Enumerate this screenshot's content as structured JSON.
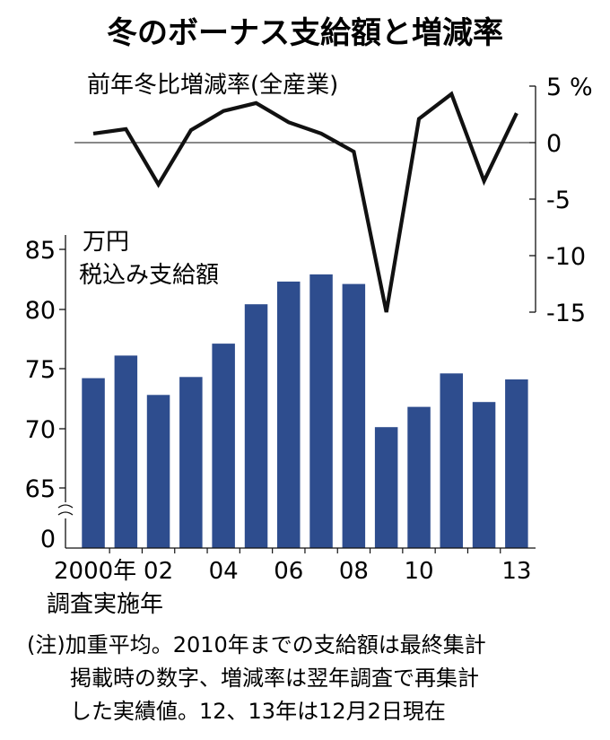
{
  "chart_data": {
    "title": "冬のボーナス支給額と増減率",
    "note_lines": [
      "(注)加重平均。2010年までの支給額は最終集計",
      "掲載時の数字、増減率は翌年調査で再集計",
      "した実績値。12、13年は12月2日現在"
    ],
    "bar": {
      "type": "bar",
      "label_lines": [
        "万円",
        "税込み支給額"
      ],
      "categories": [
        "2000",
        "2001",
        "2002",
        "2003",
        "2004",
        "2005",
        "2006",
        "2007",
        "2008",
        "2009",
        "2010",
        "2011",
        "2012",
        "2013"
      ],
      "values": [
        74.2,
        76.1,
        72.8,
        74.3,
        77.1,
        80.4,
        82.3,
        82.9,
        82.1,
        70.1,
        71.8,
        74.6,
        72.2,
        74.1
      ],
      "y_ticks": [
        "85",
        "80",
        "75",
        "70",
        "65",
        "0"
      ],
      "ylim": [
        62,
        85
      ],
      "axis_break": true,
      "color": "#2e4d8e"
    },
    "line": {
      "type": "line",
      "label": "前年冬比増減率(全産業)",
      "values": [
        0.8,
        1.2,
        -3.7,
        1.1,
        2.8,
        3.5,
        1.8,
        0.8,
        -0.8,
        -15.0,
        2.1,
        4.3,
        -3.4,
        2.6
      ],
      "y_ticks": [
        "5",
        "0",
        "-5",
        "-10",
        "-15"
      ],
      "unit": "%",
      "ylim": [
        -15,
        5
      ],
      "color": "#111111"
    },
    "x_tick_labels": [
      "2000年",
      "02",
      "04",
      "06",
      "08",
      "10",
      "13"
    ],
    "x_tick_index": [
      0,
      2,
      4,
      6,
      8,
      10,
      13
    ],
    "x_caption": "調査実施年"
  }
}
